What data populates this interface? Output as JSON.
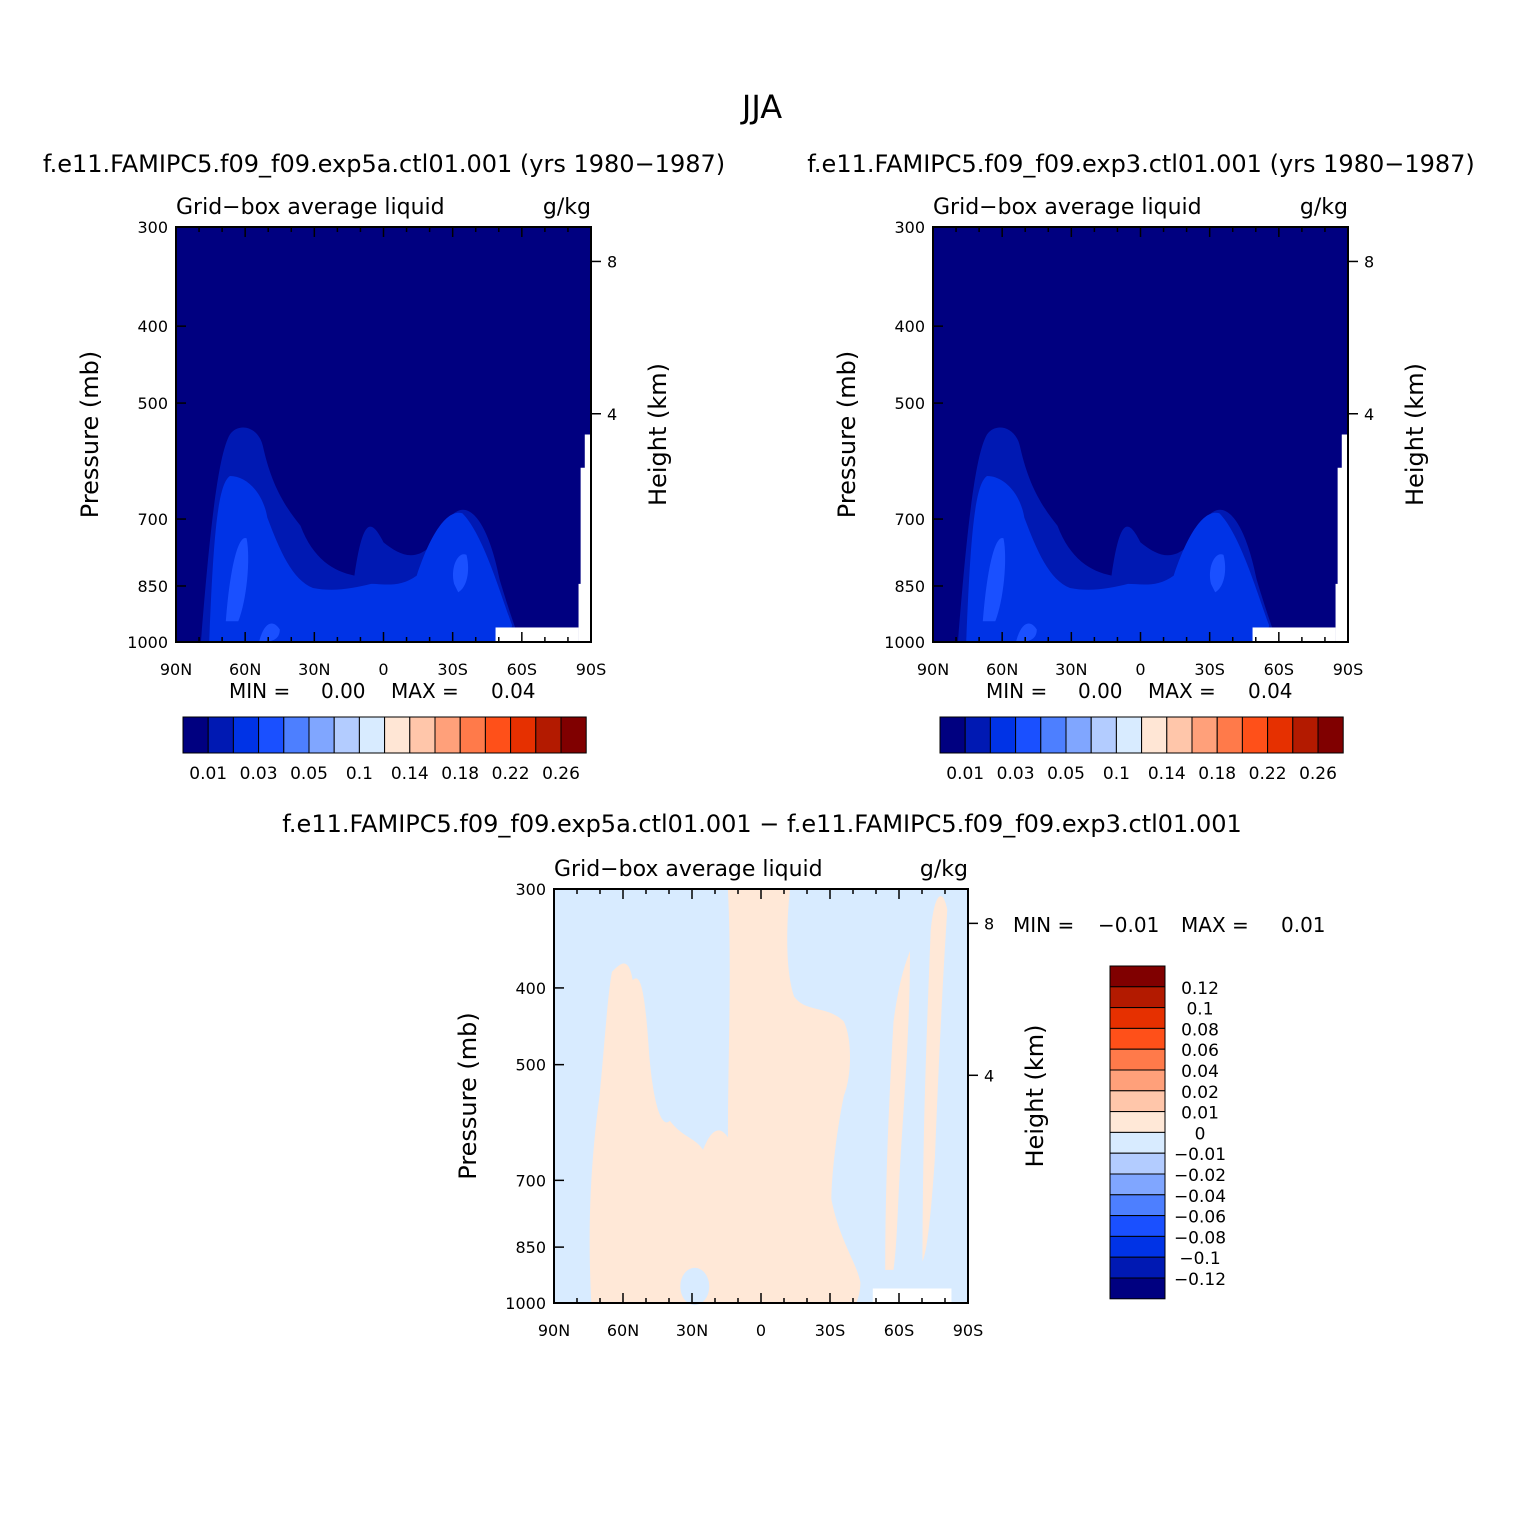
{
  "page": {
    "title": "JJA",
    "diff_title": "f.e11.FAMIPC5.f09_f09.exp5a.ctl01.001 − f.e11.FAMIPC5.f09_f09.exp3.ctl01.001"
  },
  "chart_data": [
    {
      "type": "heatmap",
      "title": "f.e11.FAMIPC5.f09_f09.exp5a.ctl01.001 (yrs 1980−1987)",
      "variable_label": "Grid−box average liquid",
      "units": "g/kg",
      "ylabel": "Pressure (mb)",
      "ylabel_right": "Height (km)",
      "x_ticks": [
        "90N",
        "60N",
        "30N",
        "0",
        "30S",
        "60S",
        "90S"
      ],
      "y_ticks": [
        300,
        400,
        500,
        700,
        850,
        1000
      ],
      "y_ticks_right": [
        8,
        4
      ],
      "ylim": [
        1000,
        300
      ],
      "min_label": "MIN =",
      "min_value": "0.00",
      "max_label": "MAX =",
      "max_value": "0.04",
      "colorbar_levels": [
        "0.01",
        "0.03",
        "0.05",
        "0.1",
        "0.14",
        "0.18",
        "0.22",
        "0.26"
      ]
    },
    {
      "type": "heatmap",
      "title": "f.e11.FAMIPC5.f09_f09.exp3.ctl01.001 (yrs 1980−1987)",
      "variable_label": "Grid−box average liquid",
      "units": "g/kg",
      "ylabel": "Pressure (mb)",
      "ylabel_right": "Height (km)",
      "x_ticks": [
        "90N",
        "60N",
        "30N",
        "0",
        "30S",
        "60S",
        "90S"
      ],
      "y_ticks": [
        300,
        400,
        500,
        700,
        850,
        1000
      ],
      "y_ticks_right": [
        8,
        4
      ],
      "ylim": [
        1000,
        300
      ],
      "min_label": "MIN =",
      "min_value": "0.00",
      "max_label": "MAX =",
      "max_value": "0.04",
      "colorbar_levels": [
        "0.01",
        "0.03",
        "0.05",
        "0.1",
        "0.14",
        "0.18",
        "0.22",
        "0.26"
      ]
    },
    {
      "type": "heatmap",
      "title": "",
      "variable_label": "Grid−box average liquid",
      "units": "g/kg",
      "ylabel": "Pressure (mb)",
      "ylabel_right": "Height (km)",
      "x_ticks": [
        "90N",
        "60N",
        "30N",
        "0",
        "30S",
        "60S",
        "90S"
      ],
      "y_ticks": [
        300,
        400,
        500,
        700,
        850,
        1000
      ],
      "y_ticks_right": [
        8,
        4
      ],
      "ylim": [
        1000,
        300
      ],
      "min_label": "MIN =",
      "min_value": "−0.01",
      "max_label": "MAX =",
      "max_value": "0.01",
      "colorbar_levels": [
        "0.12",
        "0.1",
        "0.08",
        "0.06",
        "0.04",
        "0.02",
        "0.01",
        "0",
        "−0.01",
        "−0.02",
        "−0.04",
        "−0.06",
        "−0.08",
        "−0.1",
        "−0.12"
      ]
    }
  ],
  "colors": {
    "abs_scale": [
      "#000080",
      "#0019B3",
      "#0033E6",
      "#1A50FF",
      "#4D7FFF",
      "#80A6FF",
      "#B3CCFF",
      "#D8EBFF",
      "#FFE6D5",
      "#FFC6AA",
      "#FFA07A",
      "#FF7A4A",
      "#FF5019",
      "#E63000",
      "#B31A00",
      "#800000"
    ],
    "diff_scale": [
      "#000080",
      "#0019B3",
      "#0033E6",
      "#1A50FF",
      "#4D7FFF",
      "#80A6FF",
      "#B3CCFF",
      "#D8EBFF",
      "#FFE8D7",
      "#FFC6AA",
      "#FFA07A",
      "#FF7A4A",
      "#FF5019",
      "#E63000",
      "#B31A00",
      "#800000"
    ]
  }
}
